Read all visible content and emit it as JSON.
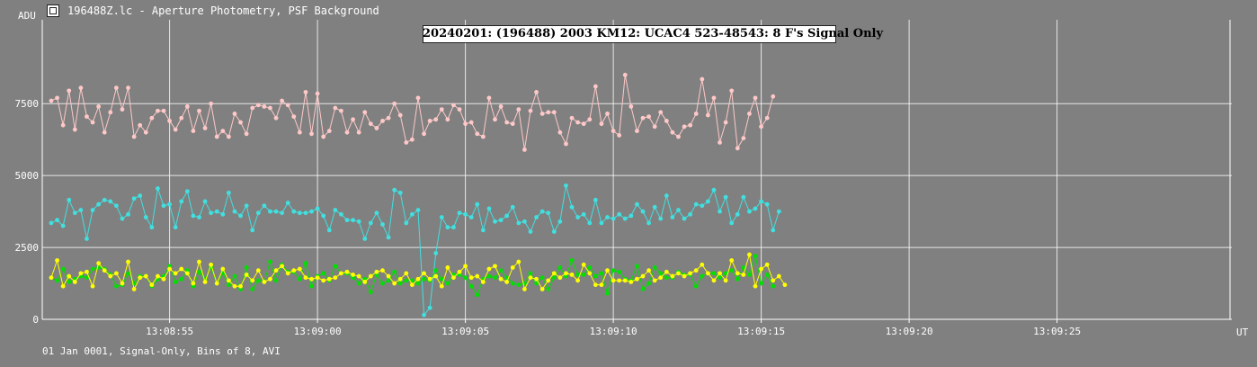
{
  "window": {
    "title": "196488Z.lc - Aperture Photometry, PSF Background",
    "icon": "lightcurve-app-icon"
  },
  "chart_data": {
    "type": "line",
    "title": "20240201: (196488) 2003 KM12: UCAC4 523-48543: 8 F's Signal Only",
    "ylabel": "ADU",
    "xlabel": "UT",
    "footer": "01 Jan 0001, Signal-Only, Bins of 8, AVI",
    "ylim": [
      0,
      10000
    ],
    "yticks": [
      0,
      2500,
      5000,
      7500
    ],
    "ytick_labels": [
      "0",
      "2500",
      "5000",
      "7500"
    ],
    "xlim": [
      0,
      195
    ],
    "xticks": [
      {
        "x": 20,
        "label": "13:08:55"
      },
      {
        "x": 45,
        "label": "13:09:00"
      },
      {
        "x": 70,
        "label": "13:09:05"
      },
      {
        "x": 95,
        "label": "13:09:10"
      },
      {
        "x": 120,
        "label": "13:09:15"
      },
      {
        "x": 145,
        "label": "13:09:20"
      },
      {
        "x": 170,
        "label": "13:09:25"
      }
    ],
    "grid": true,
    "background": "#808080",
    "gridColor": "#ffffff",
    "series": [
      {
        "color": "#ffc8c8",
        "values": [
          7600,
          7700,
          6750,
          7950,
          6600,
          8050,
          7050,
          6850,
          7400,
          6500,
          7200,
          8050,
          7300,
          8050,
          6350,
          6750,
          6500,
          7000,
          7250,
          7250,
          6900,
          6600,
          7000,
          7400,
          6550,
          7250,
          6650,
          7500,
          6350,
          6550,
          6350,
          7150,
          6850,
          6450,
          7350,
          7450,
          7400,
          7350,
          7000,
          7600,
          7450,
          7050,
          6500,
          7900,
          6450,
          7850,
          6350,
          6550,
          7350,
          7250,
          6500,
          6950,
          6500,
          7200,
          6800,
          6650,
          6900,
          7000,
          7500,
          7100,
          6150,
          6250,
          7700,
          6450,
          6900,
          6950,
          7300,
          6950,
          7450,
          7300,
          6800,
          6850,
          6450,
          6350,
          7700,
          6950,
          7400,
          6850,
          6800,
          7300,
          5900,
          7250,
          7900,
          7150,
          7200,
          7200,
          6500,
          6100,
          7000,
          6850,
          6800,
          6950,
          8100,
          6800,
          7150,
          6550,
          6400,
          8500,
          7400,
          6550,
          7000,
          7050,
          6700,
          7200,
          6900,
          6500,
          6350,
          6700,
          6750,
          7150,
          8350,
          7100,
          7700,
          6150,
          6850,
          7950,
          5950,
          6300,
          7150,
          7700,
          6700,
          7000,
          7750
        ]
      },
      {
        "color": "#40e0e0",
        "values": [
          3350,
          3450,
          3250,
          4150,
          3700,
          3800,
          2800,
          3800,
          4000,
          4150,
          4100,
          3950,
          3500,
          3650,
          4200,
          4300,
          3550,
          3200,
          4550,
          3950,
          4000,
          3200,
          4100,
          4450,
          3600,
          3550,
          4100,
          3700,
          3750,
          3650,
          4400,
          3750,
          3600,
          3950,
          3100,
          3700,
          3950,
          3750,
          3750,
          3700,
          4050,
          3750,
          3700,
          3700,
          3750,
          3850,
          3600,
          3100,
          3800,
          3650,
          3450,
          3450,
          3400,
          2800,
          3350,
          3700,
          3300,
          2850,
          4500,
          4400,
          3350,
          3650,
          3800,
          150,
          400,
          2300,
          3550,
          3200,
          3200,
          3700,
          3650,
          3550,
          4000,
          3100,
          3850,
          3400,
          3450,
          3600,
          3900,
          3350,
          3400,
          3050,
          3550,
          3750,
          3700,
          3050,
          3400,
          4650,
          3900,
          3550,
          3650,
          3350,
          4150,
          3350,
          3550,
          3500,
          3650,
          3500,
          3600,
          4000,
          3750,
          3350,
          3900,
          3500,
          4300,
          3550,
          3800,
          3500,
          3650,
          4000,
          3950,
          4100,
          4500,
          3750,
          4250,
          3350,
          3650,
          4250,
          3750,
          3850,
          4100,
          4000,
          3100,
          3750
        ]
      },
      {
        "color": "#00e000",
        "values": [
          1450,
          1350,
          1750,
          1300,
          1400,
          1500,
          1450,
          1750,
          1800,
          1750,
          1550,
          1150,
          1200,
          1600,
          1250,
          1500,
          1500,
          1150,
          1400,
          1500,
          1850,
          1300,
          1400,
          1700,
          1150,
          1650,
          1400,
          1800,
          1250,
          1600,
          1200,
          1500,
          1050,
          1800,
          1050,
          1350,
          1300,
          2000,
          1350,
          1900,
          1650,
          1650,
          1400,
          1950,
          1150,
          1500,
          1600,
          1350,
          1850,
          1600,
          1600,
          1450,
          1250,
          1400,
          950,
          1550,
          1250,
          1350,
          1650,
          1250,
          1350,
          1350,
          1250,
          1400,
          1350,
          1700,
          1400,
          1250,
          1550,
          1550,
          1450,
          1150,
          850,
          1400,
          1500,
          1450,
          1700,
          1450,
          1250,
          1200,
          1250,
          1600,
          1250,
          1450,
          1050,
          1450,
          1800,
          1500,
          2050,
          1550,
          1550,
          1800,
          1500,
          1600,
          900,
          1700,
          1650,
          1400,
          1350,
          1850,
          1050,
          1250,
          1800,
          1600,
          1450,
          1450,
          1650,
          1550,
          1550,
          1150,
          1500,
          1600,
          1600,
          1450,
          1600,
          1700,
          1400,
          1800,
          1550,
          2200,
          1250,
          1550,
          1150
        ]
      },
      {
        "color": "#ffff00",
        "values": [
          1450,
          2050,
          1150,
          1500,
          1300,
          1600,
          1650,
          1150,
          1950,
          1700,
          1500,
          1600,
          1250,
          2000,
          1050,
          1450,
          1500,
          1200,
          1500,
          1400,
          1750,
          1600,
          1750,
          1600,
          1250,
          2000,
          1300,
          1900,
          1250,
          1750,
          1350,
          1150,
          1150,
          1550,
          1350,
          1700,
          1300,
          1400,
          1700,
          1850,
          1600,
          1700,
          1750,
          1450,
          1400,
          1450,
          1350,
          1400,
          1450,
          1600,
          1650,
          1550,
          1500,
          1300,
          1500,
          1650,
          1700,
          1500,
          1250,
          1400,
          1600,
          1200,
          1400,
          1600,
          1400,
          1500,
          1150,
          1800,
          1450,
          1650,
          1850,
          1450,
          1500,
          1300,
          1750,
          1850,
          1400,
          1300,
          1800,
          2000,
          1050,
          1450,
          1400,
          1050,
          1350,
          1600,
          1450,
          1600,
          1550,
          1350,
          1900,
          1600,
          1200,
          1200,
          1700,
          1350,
          1350,
          1350,
          1300,
          1400,
          1500,
          1700,
          1350,
          1450,
          1650,
          1500,
          1600,
          1500,
          1600,
          1700,
          1900,
          1600,
          1350,
          1600,
          1350,
          2050,
          1600,
          1550,
          2250,
          1150,
          1750,
          1900,
          1350,
          1500,
          1200
        ]
      }
    ]
  }
}
